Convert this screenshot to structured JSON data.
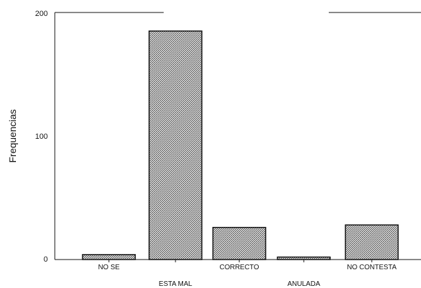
{
  "chart_data": {
    "type": "bar",
    "title": "",
    "xlabel": "",
    "ylabel": "Frequencias",
    "ylim": [
      0,
      200
    ],
    "yticks": [
      "0",
      "100",
      "200"
    ],
    "grid": false,
    "legend": "none",
    "categories": [
      "NO SE",
      "ESTA MAL",
      "CORRECTO",
      "ANULADA",
      "NO CONTESTA"
    ],
    "values": [
      4,
      185,
      26,
      2,
      28
    ],
    "bar_fill": "#666666",
    "bar_stroke": "#111111"
  }
}
